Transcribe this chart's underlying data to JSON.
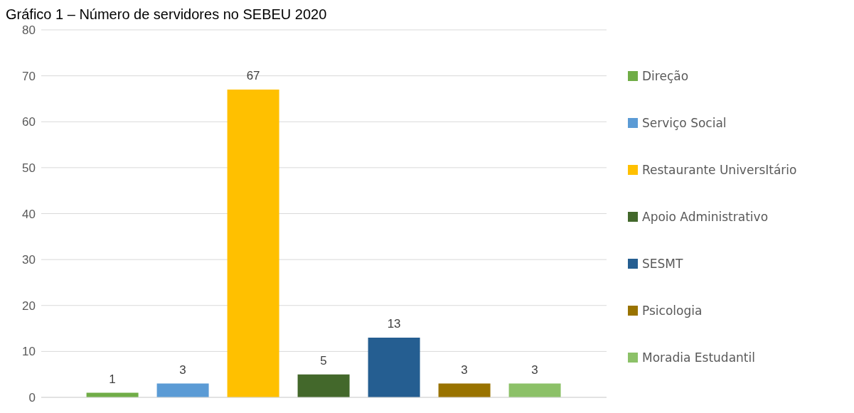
{
  "chart_data": {
    "type": "bar",
    "title": "Gráfico 1 – Número de servidores no SEBEU 2020",
    "categories": [
      null
    ],
    "series": [
      {
        "name": "Direção",
        "color": "#70ad47",
        "values": [
          1
        ]
      },
      {
        "name": "Serviço Social",
        "color": "#5b9bd5",
        "values": [
          3
        ]
      },
      {
        "name": "Restaurante UniversItário",
        "color": "#ffc000",
        "values": [
          67
        ]
      },
      {
        "name": "Apoio Administrativo",
        "color": "#43682b",
        "values": [
          5
        ]
      },
      {
        "name": "SESMT",
        "color": "#255e91",
        "values": [
          13
        ]
      },
      {
        "name": "Psicologia",
        "color": "#997300",
        "values": [
          3
        ]
      },
      {
        "name": "Moradia Estudantil",
        "color": "#8cc168",
        "values": [
          3
        ]
      }
    ],
    "ylim": [
      0,
      80
    ],
    "yticks": [
      0,
      10,
      20,
      30,
      40,
      50,
      60,
      70,
      80
    ],
    "grid": "y",
    "legend": "right",
    "data_labels": true
  }
}
